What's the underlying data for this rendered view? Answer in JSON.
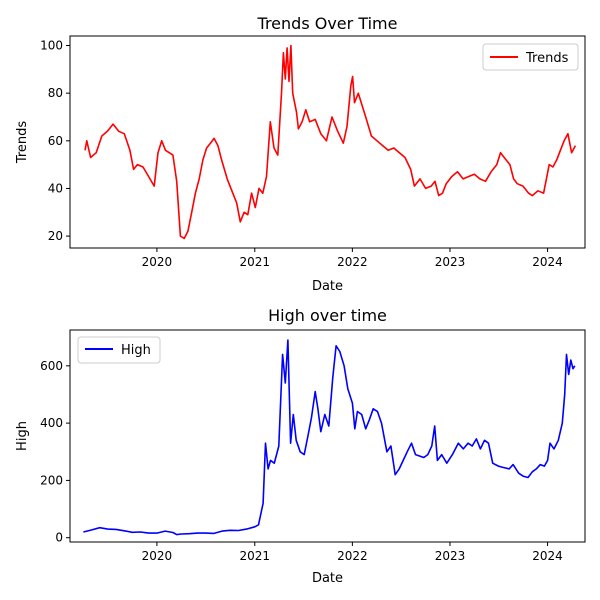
{
  "chart_data": [
    {
      "type": "line",
      "title": "Trends Over Time",
      "xlabel": "Date",
      "ylabel": "Trends",
      "xlim": [
        "2019-02-10",
        "2024-05-20"
      ],
      "ylim": [
        15,
        104
      ],
      "xticks": [
        "2020",
        "2021",
        "2022",
        "2023",
        "2024"
      ],
      "yticks": [
        20,
        40,
        60,
        80,
        100
      ],
      "legend": "upper right",
      "grid": false,
      "series": [
        {
          "name": "Trends",
          "color": "#ff0000",
          "points": [
            [
              "2019-04-07",
              56
            ],
            [
              "2019-04-14",
              60
            ],
            [
              "2019-04-28",
              53
            ],
            [
              "2019-05-19",
              55
            ],
            [
              "2019-06-09",
              62
            ],
            [
              "2019-06-30",
              64
            ],
            [
              "2019-07-21",
              67
            ],
            [
              "2019-08-11",
              64
            ],
            [
              "2019-09-01",
              63
            ],
            [
              "2019-09-22",
              56
            ],
            [
              "2019-10-06",
              48
            ],
            [
              "2019-10-20",
              50
            ],
            [
              "2019-11-10",
              49
            ],
            [
              "2019-12-01",
              45
            ],
            [
              "2019-12-22",
              41
            ],
            [
              "2020-01-05",
              55
            ],
            [
              "2020-01-19",
              60
            ],
            [
              "2020-02-02",
              56
            ],
            [
              "2020-02-16",
              55
            ],
            [
              "2020-03-01",
              54
            ],
            [
              "2020-03-15",
              43
            ],
            [
              "2020-03-29",
              20
            ],
            [
              "2020-04-12",
              19
            ],
            [
              "2020-04-26",
              22
            ],
            [
              "2020-05-10",
              30
            ],
            [
              "2020-05-24",
              38
            ],
            [
              "2020-06-07",
              44
            ],
            [
              "2020-06-21",
              52
            ],
            [
              "2020-07-05",
              57
            ],
            [
              "2020-07-19",
              59
            ],
            [
              "2020-08-02",
              61
            ],
            [
              "2020-08-16",
              58
            ],
            [
              "2020-08-30",
              52
            ],
            [
              "2020-09-20",
              44
            ],
            [
              "2020-10-11",
              38
            ],
            [
              "2020-10-25",
              34
            ],
            [
              "2020-11-08",
              26
            ],
            [
              "2020-11-22",
              30
            ],
            [
              "2020-12-06",
              29
            ],
            [
              "2020-12-20",
              38
            ],
            [
              "2021-01-03",
              32
            ],
            [
              "2021-01-17",
              40
            ],
            [
              "2021-01-31",
              38
            ],
            [
              "2021-02-14",
              45
            ],
            [
              "2021-02-28",
              68
            ],
            [
              "2021-03-14",
              57
            ],
            [
              "2021-03-28",
              54
            ],
            [
              "2021-04-11",
              80
            ],
            [
              "2021-04-18",
              97
            ],
            [
              "2021-04-25",
              86
            ],
            [
              "2021-05-02",
              99
            ],
            [
              "2021-05-09",
              85
            ],
            [
              "2021-05-16",
              100
            ],
            [
              "2021-05-23",
              80
            ],
            [
              "2021-06-06",
              72
            ],
            [
              "2021-06-13",
              65
            ],
            [
              "2021-06-27",
              68
            ],
            [
              "2021-07-11",
              73
            ],
            [
              "2021-07-25",
              68
            ],
            [
              "2021-08-15",
              69
            ],
            [
              "2021-09-05",
              63
            ],
            [
              "2021-09-26",
              60
            ],
            [
              "2021-10-17",
              70
            ],
            [
              "2021-11-07",
              64
            ],
            [
              "2021-11-28",
              59
            ],
            [
              "2021-12-12",
              66
            ],
            [
              "2021-12-26",
              83
            ],
            [
              "2022-01-02",
              87
            ],
            [
              "2022-01-09",
              76
            ],
            [
              "2022-01-23",
              80
            ],
            [
              "2022-02-06",
              75
            ],
            [
              "2022-02-20",
              70
            ],
            [
              "2022-03-13",
              62
            ],
            [
              "2022-04-03",
              60
            ],
            [
              "2022-04-24",
              58
            ],
            [
              "2022-05-15",
              56
            ],
            [
              "2022-06-05",
              57
            ],
            [
              "2022-06-26",
              55
            ],
            [
              "2022-07-17",
              53
            ],
            [
              "2022-08-07",
              48
            ],
            [
              "2022-08-21",
              41
            ],
            [
              "2022-09-11",
              44
            ],
            [
              "2022-10-02",
              40
            ],
            [
              "2022-10-23",
              41
            ],
            [
              "2022-11-06",
              43
            ],
            [
              "2022-11-20",
              37
            ],
            [
              "2022-12-04",
              38
            ],
            [
              "2022-12-18",
              42
            ],
            [
              "2023-01-08",
              45
            ],
            [
              "2023-01-29",
              47
            ],
            [
              "2023-02-19",
              44
            ],
            [
              "2023-03-12",
              45
            ],
            [
              "2023-04-02",
              46
            ],
            [
              "2023-04-23",
              44
            ],
            [
              "2023-05-14",
              43
            ],
            [
              "2023-06-04",
              47
            ],
            [
              "2023-06-25",
              50
            ],
            [
              "2023-07-09",
              55
            ],
            [
              "2023-07-23",
              53
            ],
            [
              "2023-08-13",
              50
            ],
            [
              "2023-08-27",
              44
            ],
            [
              "2023-09-10",
              42
            ],
            [
              "2023-10-01",
              41
            ],
            [
              "2023-10-22",
              38
            ],
            [
              "2023-11-05",
              37
            ],
            [
              "2023-11-26",
              39
            ],
            [
              "2023-12-17",
              38
            ],
            [
              "2024-01-07",
              50
            ],
            [
              "2024-01-21",
              49
            ],
            [
              "2024-02-04",
              52
            ],
            [
              "2024-02-18",
              56
            ],
            [
              "2024-03-03",
              60
            ],
            [
              "2024-03-17",
              63
            ],
            [
              "2024-03-31",
              55
            ],
            [
              "2024-04-14",
              58
            ]
          ]
        }
      ]
    },
    {
      "type": "line",
      "title": "High over time",
      "xlabel": "Date",
      "ylabel": "High",
      "xlim": [
        "2019-02-10",
        "2024-05-20"
      ],
      "ylim": [
        -15,
        725
      ],
      "xticks": [
        "2020",
        "2021",
        "2022",
        "2023",
        "2024"
      ],
      "yticks": [
        0,
        200,
        400,
        600
      ],
      "legend": "upper left",
      "grid": false,
      "series": [
        {
          "name": "High",
          "color": "#0000ff",
          "points": [
            [
              "2019-04-01",
              20
            ],
            [
              "2019-05-01",
              27
            ],
            [
              "2019-06-01",
              35
            ],
            [
              "2019-07-01",
              30
            ],
            [
              "2019-08-01",
              29
            ],
            [
              "2019-09-01",
              24
            ],
            [
              "2019-10-01",
              19
            ],
            [
              "2019-11-01",
              20
            ],
            [
              "2019-12-01",
              16
            ],
            [
              "2020-01-01",
              16
            ],
            [
              "2020-02-01",
              23
            ],
            [
              "2020-03-01",
              18
            ],
            [
              "2020-03-15",
              11
            ],
            [
              "2020-04-01",
              13
            ],
            [
              "2020-05-01",
              14
            ],
            [
              "2020-06-01",
              16
            ],
            [
              "2020-07-01",
              16
            ],
            [
              "2020-08-01",
              15
            ],
            [
              "2020-09-01",
              23
            ],
            [
              "2020-10-01",
              26
            ],
            [
              "2020-11-01",
              25
            ],
            [
              "2020-12-01",
              30
            ],
            [
              "2021-01-01",
              38
            ],
            [
              "2021-01-15",
              45
            ],
            [
              "2021-02-01",
              120
            ],
            [
              "2021-02-10",
              330
            ],
            [
              "2021-02-20",
              240
            ],
            [
              "2021-03-01",
              270
            ],
            [
              "2021-03-15",
              260
            ],
            [
              "2021-04-01",
              320
            ],
            [
              "2021-04-15",
              640
            ],
            [
              "2021-04-25",
              540
            ],
            [
              "2021-05-05",
              690
            ],
            [
              "2021-05-15",
              330
            ],
            [
              "2021-05-25",
              430
            ],
            [
              "2021-06-05",
              340
            ],
            [
              "2021-06-20",
              300
            ],
            [
              "2021-07-05",
              290
            ],
            [
              "2021-07-20",
              360
            ],
            [
              "2021-08-01",
              420
            ],
            [
              "2021-08-15",
              510
            ],
            [
              "2021-08-25",
              450
            ],
            [
              "2021-09-05",
              370
            ],
            [
              "2021-09-20",
              430
            ],
            [
              "2021-10-05",
              390
            ],
            [
              "2021-10-20",
              560
            ],
            [
              "2021-11-01",
              670
            ],
            [
              "2021-11-15",
              650
            ],
            [
              "2021-12-01",
              600
            ],
            [
              "2021-12-15",
              520
            ],
            [
              "2022-01-01",
              470
            ],
            [
              "2022-01-10",
              380
            ],
            [
              "2022-01-20",
              440
            ],
            [
              "2022-02-05",
              430
            ],
            [
              "2022-02-20",
              380
            ],
            [
              "2022-03-05",
              410
            ],
            [
              "2022-03-20",
              450
            ],
            [
              "2022-04-05",
              440
            ],
            [
              "2022-04-20",
              400
            ],
            [
              "2022-05-10",
              300
            ],
            [
              "2022-05-25",
              320
            ],
            [
              "2022-06-10",
              220
            ],
            [
              "2022-06-25",
              240
            ],
            [
              "2022-07-10",
              270
            ],
            [
              "2022-07-25",
              300
            ],
            [
              "2022-08-10",
              330
            ],
            [
              "2022-08-25",
              290
            ],
            [
              "2022-09-10",
              285
            ],
            [
              "2022-09-25",
              280
            ],
            [
              "2022-10-10",
              290
            ],
            [
              "2022-10-25",
              320
            ],
            [
              "2022-11-05",
              390
            ],
            [
              "2022-11-15",
              270
            ],
            [
              "2022-12-01",
              290
            ],
            [
              "2022-12-20",
              260
            ],
            [
              "2023-01-10",
              290
            ],
            [
              "2023-02-01",
              330
            ],
            [
              "2023-02-20",
              310
            ],
            [
              "2023-03-10",
              330
            ],
            [
              "2023-03-25",
              320
            ],
            [
              "2023-04-10",
              345
            ],
            [
              "2023-04-25",
              310
            ],
            [
              "2023-05-10",
              340
            ],
            [
              "2023-05-25",
              330
            ],
            [
              "2023-06-10",
              260
            ],
            [
              "2023-07-01",
              250
            ],
            [
              "2023-07-20",
              245
            ],
            [
              "2023-08-10",
              240
            ],
            [
              "2023-08-25",
              255
            ],
            [
              "2023-09-15",
              225
            ],
            [
              "2023-10-01",
              215
            ],
            [
              "2023-10-20",
              210
            ],
            [
              "2023-11-05",
              230
            ],
            [
              "2023-11-20",
              240
            ],
            [
              "2023-12-05",
              255
            ],
            [
              "2023-12-20",
              250
            ],
            [
              "2024-01-01",
              270
            ],
            [
              "2024-01-10",
              330
            ],
            [
              "2024-01-25",
              310
            ],
            [
              "2024-02-10",
              340
            ],
            [
              "2024-02-25",
              400
            ],
            [
              "2024-03-05",
              500
            ],
            [
              "2024-03-12",
              640
            ],
            [
              "2024-03-20",
              570
            ],
            [
              "2024-03-28",
              620
            ],
            [
              "2024-04-05",
              590
            ],
            [
              "2024-04-12",
              600
            ]
          ]
        }
      ]
    }
  ]
}
